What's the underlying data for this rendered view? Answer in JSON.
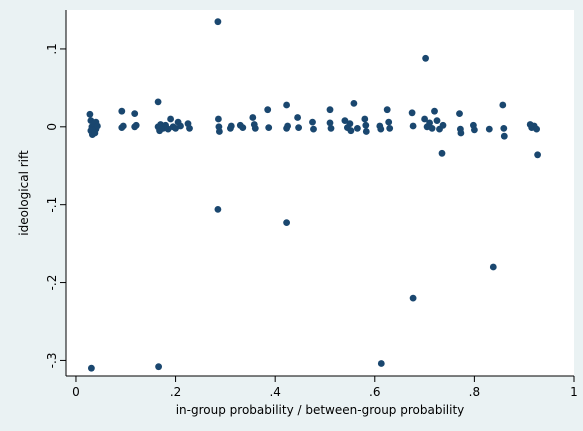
{
  "chart_data": {
    "type": "scatter",
    "title": "",
    "xlabel": "in-group probability / between-group probability",
    "ylabel": "ideological rift",
    "xlim": [
      -0.02,
      1.0
    ],
    "ylim": [
      -0.32,
      0.15
    ],
    "grid": false,
    "legend": "none",
    "colors": {
      "background": "#eaf2f3",
      "plot_area": "#ffffff",
      "marker": "#1a476f",
      "axis": "#000000"
    },
    "xticks": [
      {
        "value": 0,
        "label": "0"
      },
      {
        "value": 0.2,
        "label": ".2"
      },
      {
        "value": 0.4,
        "label": ".4"
      },
      {
        "value": 0.6,
        "label": ".6"
      },
      {
        "value": 0.8,
        "label": ".8"
      },
      {
        "value": 1,
        "label": "1"
      }
    ],
    "yticks": [
      {
        "value": 0.1,
        "label": ".1"
      },
      {
        "value": 0,
        "label": "0"
      },
      {
        "value": -0.1,
        "label": "-.1"
      },
      {
        "value": -0.2,
        "label": "-.2"
      },
      {
        "value": -0.3,
        "label": "-.3"
      }
    ],
    "points": [
      {
        "x": 0.028,
        "y": 0.016
      },
      {
        "x": 0.03,
        "y": 0.008
      },
      {
        "x": 0.032,
        "y": 0.0
      },
      {
        "x": 0.03,
        "y": -0.005
      },
      {
        "x": 0.033,
        "y": -0.01
      },
      {
        "x": 0.036,
        "y": 0.004
      },
      {
        "x": 0.04,
        "y": -0.003
      },
      {
        "x": 0.04,
        "y": 0.006
      },
      {
        "x": 0.043,
        "y": 0.001
      },
      {
        "x": 0.038,
        "y": -0.008
      },
      {
        "x": 0.031,
        "y": -0.31
      },
      {
        "x": 0.092,
        "y": 0.02
      },
      {
        "x": 0.092,
        "y": -0.001
      },
      {
        "x": 0.095,
        "y": 0.001
      },
      {
        "x": 0.118,
        "y": 0.017
      },
      {
        "x": 0.118,
        "y": 0.0
      },
      {
        "x": 0.121,
        "y": 0.002
      },
      {
        "x": 0.165,
        "y": 0.032
      },
      {
        "x": 0.165,
        "y": 0.0
      },
      {
        "x": 0.17,
        "y": 0.003
      },
      {
        "x": 0.168,
        "y": -0.005
      },
      {
        "x": 0.175,
        "y": -0.002
      },
      {
        "x": 0.18,
        "y": 0.002
      },
      {
        "x": 0.185,
        "y": -0.003
      },
      {
        "x": 0.19,
        "y": 0.01
      },
      {
        "x": 0.195,
        "y": 0.0
      },
      {
        "x": 0.2,
        "y": -0.002
      },
      {
        "x": 0.205,
        "y": 0.006
      },
      {
        "x": 0.21,
        "y": 0.001
      },
      {
        "x": 0.225,
        "y": 0.004
      },
      {
        "x": 0.228,
        "y": -0.002
      },
      {
        "x": 0.166,
        "y": -0.308
      },
      {
        "x": 0.285,
        "y": 0.135
      },
      {
        "x": 0.286,
        "y": 0.01
      },
      {
        "x": 0.287,
        "y": 0.0
      },
      {
        "x": 0.288,
        "y": -0.006
      },
      {
        "x": 0.285,
        "y": -0.106
      },
      {
        "x": 0.31,
        "y": -0.002
      },
      {
        "x": 0.312,
        "y": 0.001
      },
      {
        "x": 0.33,
        "y": 0.002
      },
      {
        "x": 0.335,
        "y": -0.001
      },
      {
        "x": 0.355,
        "y": 0.012
      },
      {
        "x": 0.358,
        "y": 0.003
      },
      {
        "x": 0.36,
        "y": -0.002
      },
      {
        "x": 0.385,
        "y": 0.022
      },
      {
        "x": 0.387,
        "y": -0.001
      },
      {
        "x": 0.423,
        "y": 0.028
      },
      {
        "x": 0.423,
        "y": -0.002
      },
      {
        "x": 0.425,
        "y": 0.001
      },
      {
        "x": 0.423,
        "y": -0.123
      },
      {
        "x": 0.445,
        "y": 0.012
      },
      {
        "x": 0.447,
        "y": -0.001
      },
      {
        "x": 0.475,
        "y": 0.006
      },
      {
        "x": 0.477,
        "y": -0.003
      },
      {
        "x": 0.51,
        "y": 0.022
      },
      {
        "x": 0.51,
        "y": 0.005
      },
      {
        "x": 0.512,
        "y": -0.002
      },
      {
        "x": 0.54,
        "y": 0.008
      },
      {
        "x": 0.545,
        "y": -0.001
      },
      {
        "x": 0.55,
        "y": 0.004
      },
      {
        "x": 0.552,
        "y": -0.005
      },
      {
        "x": 0.558,
        "y": 0.03
      },
      {
        "x": 0.565,
        "y": -0.002
      },
      {
        "x": 0.58,
        "y": 0.01
      },
      {
        "x": 0.582,
        "y": 0.002
      },
      {
        "x": 0.583,
        "y": -0.006
      },
      {
        "x": 0.61,
        "y": 0.001
      },
      {
        "x": 0.612,
        "y": -0.003
      },
      {
        "x": 0.613,
        "y": -0.304
      },
      {
        "x": 0.625,
        "y": 0.022
      },
      {
        "x": 0.628,
        "y": 0.006
      },
      {
        "x": 0.63,
        "y": -0.002
      },
      {
        "x": 0.675,
        "y": 0.018
      },
      {
        "x": 0.677,
        "y": 0.001
      },
      {
        "x": 0.677,
        "y": -0.22
      },
      {
        "x": 0.702,
        "y": 0.088
      },
      {
        "x": 0.7,
        "y": 0.01
      },
      {
        "x": 0.705,
        "y": 0.0
      },
      {
        "x": 0.71,
        "y": 0.005
      },
      {
        "x": 0.715,
        "y": -0.002
      },
      {
        "x": 0.72,
        "y": 0.02
      },
      {
        "x": 0.725,
        "y": 0.008
      },
      {
        "x": 0.73,
        "y": -0.003
      },
      {
        "x": 0.735,
        "y": -0.034
      },
      {
        "x": 0.737,
        "y": 0.002
      },
      {
        "x": 0.77,
        "y": 0.017
      },
      {
        "x": 0.772,
        "y": -0.003
      },
      {
        "x": 0.773,
        "y": -0.008
      },
      {
        "x": 0.798,
        "y": 0.002
      },
      {
        "x": 0.8,
        "y": -0.004
      },
      {
        "x": 0.83,
        "y": -0.003
      },
      {
        "x": 0.838,
        "y": -0.18
      },
      {
        "x": 0.857,
        "y": 0.028
      },
      {
        "x": 0.859,
        "y": -0.002
      },
      {
        "x": 0.86,
        "y": -0.012
      },
      {
        "x": 0.912,
        "y": 0.003
      },
      {
        "x": 0.915,
        "y": -0.001
      },
      {
        "x": 0.92,
        "y": 0.001
      },
      {
        "x": 0.925,
        "y": -0.003
      },
      {
        "x": 0.927,
        "y": -0.036
      }
    ]
  }
}
